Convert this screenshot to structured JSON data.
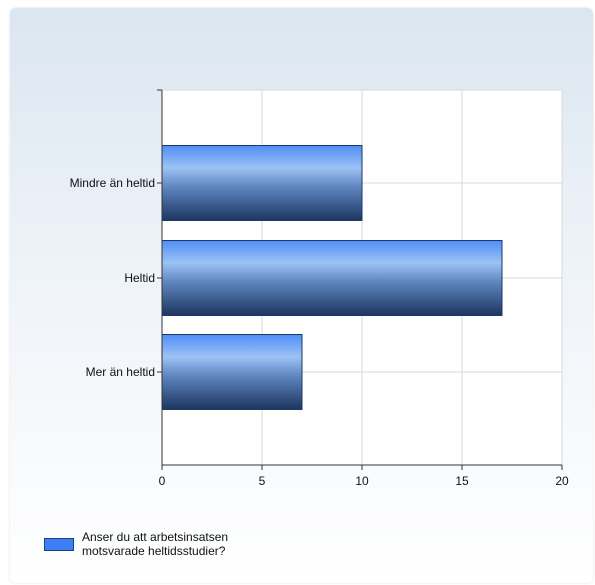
{
  "chart_data": {
    "type": "bar",
    "orientation": "horizontal",
    "categories": [
      "Mindre än heltid",
      "Heltid",
      "Mer än heltid"
    ],
    "series": [
      {
        "name": "Anser du att arbetsinsatsen motsvarade heltidsstudier?",
        "values": [
          10,
          17,
          7
        ]
      }
    ],
    "xlim": [
      0,
      20
    ],
    "xticks": [
      "0",
      "5",
      "10",
      "15",
      "20"
    ],
    "grid": true,
    "legend_position": "bottom-left",
    "bar_color": "#3f7ff5"
  }
}
